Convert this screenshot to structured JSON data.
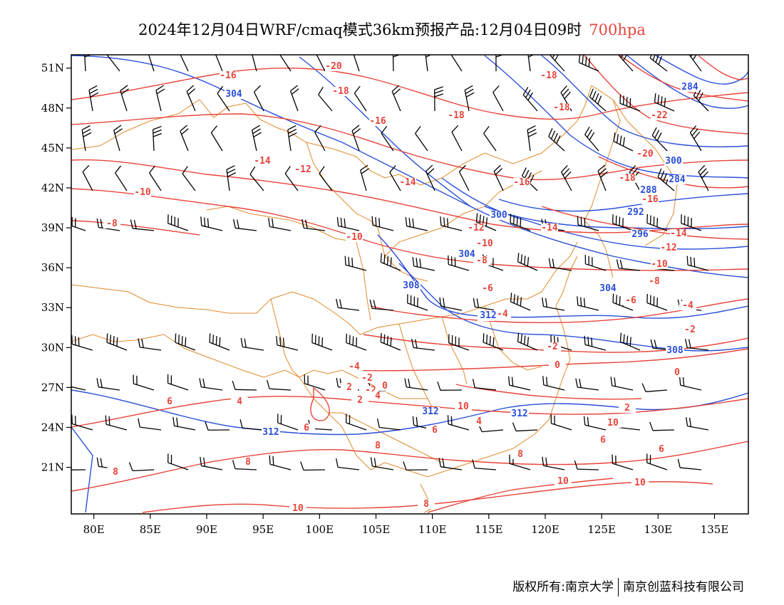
{
  "title": {
    "main": "2024年12月04日WRF/cmaq模式36km预报产品:12月04日09时",
    "level": "700hpa"
  },
  "axes": {
    "lon_labels": [
      "80E",
      "85E",
      "90E",
      "95E",
      "100E",
      "105E",
      "110E",
      "115E",
      "120E",
      "125E",
      "130E",
      "135E"
    ],
    "lat_labels": [
      "51N",
      "48N",
      "45N",
      "42N",
      "39N",
      "36N",
      "33N",
      "30N",
      "27N",
      "24N",
      "21N"
    ],
    "lon_range": [
      78,
      138
    ],
    "lat_range": [
      17.5,
      52
    ]
  },
  "colors": {
    "temperature": "#e8443a",
    "geopotential": "#2a4fd8",
    "borders": "#e08a2c",
    "barbs": "#000000"
  },
  "temperature_labels": [
    "-20",
    "-18",
    "-18",
    "-16",
    "-18",
    "-16",
    "-18",
    "-22",
    "-14",
    "-12",
    "-20",
    "-18",
    "-16",
    "-14",
    "-10",
    "-8",
    "-16",
    "-14",
    "-10",
    "-12",
    "-14",
    "-10",
    "-12",
    "-8",
    "-8",
    "-6",
    "-10",
    "-6",
    "-8",
    "-4",
    "-4",
    "-2",
    "-2",
    "-2",
    "0",
    "0",
    "-4",
    "-2",
    "0",
    "2",
    "4",
    "6",
    "2",
    "4",
    "6",
    "2",
    "6",
    "4",
    "6",
    "6",
    "8",
    "8",
    "8",
    "8",
    "8",
    "10",
    "10",
    "10",
    "10",
    "10"
  ],
  "height_labels": [
    "304",
    "284",
    "300",
    "284",
    "288",
    "292",
    "300",
    "296",
    "304",
    "308",
    "304",
    "312",
    "308",
    "312",
    "312",
    "312"
  ],
  "copyright": {
    "left": "版权所有:南京大学",
    "right": "南京创蓝科技有限公司"
  }
}
